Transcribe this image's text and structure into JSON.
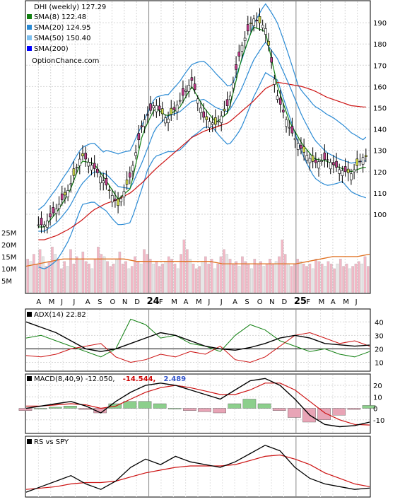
{
  "chart_data": [
    {
      "type": "candlestick",
      "panel": "price",
      "title": "DHI (weekly) 127.29",
      "source": "OptionChance.com",
      "legend_position": "top-left",
      "legend": [
        {
          "label": "SMA(8) 122.48",
          "color": "#128012"
        },
        {
          "label": "SMA(20) 124.95",
          "color": "#2a8ad4"
        },
        {
          "label": "SMA(50) 150.40",
          "color": "#7ec0f0"
        },
        {
          "label": "SMA(200)",
          "color": "#0000ff"
        }
      ],
      "y_ticks": [
        100,
        110,
        120,
        130,
        140,
        150,
        160,
        170,
        180,
        190
      ],
      "ylim": [
        95,
        200
      ],
      "x_labels": [
        "A",
        "M",
        "J",
        "J",
        "A",
        "S",
        "O",
        "N",
        "D",
        "24",
        "F",
        "M",
        "A",
        "M",
        "J",
        "J",
        "A",
        "S",
        "O",
        "N",
        "D",
        "25",
        "F",
        "M",
        "A",
        "M",
        "J"
      ],
      "close_path": [
        [
          "2023-04",
          95
        ],
        [
          "2023-05",
          103
        ],
        [
          "2023-06",
          112
        ],
        [
          "2023-07",
          128
        ],
        [
          "2023-08",
          122
        ],
        [
          "2023-09",
          114
        ],
        [
          "2023-10",
          104
        ],
        [
          "2023-11",
          118
        ],
        [
          "2023-12",
          143
        ],
        [
          "2024-01",
          152
        ],
        [
          "2024-02",
          144
        ],
        [
          "2024-03",
          153
        ],
        [
          "2024-04",
          163
        ],
        [
          "2024-05",
          145
        ],
        [
          "2024-06",
          142
        ],
        [
          "2024-07",
          152
        ],
        [
          "2024-08",
          178
        ],
        [
          "2024-09",
          192
        ],
        [
          "2024-10",
          188
        ],
        [
          "2024-11",
          155
        ],
        [
          "2024-12",
          140
        ],
        [
          "2025-01",
          130
        ],
        [
          "2025-02",
          124
        ],
        [
          "2025-03",
          126
        ],
        [
          "2025-04",
          121
        ],
        [
          "2025-05",
          119
        ],
        [
          "2025-06",
          127
        ]
      ],
      "sma8": [
        [
          "2023-04",
          94
        ],
        [
          "2023-05",
          101
        ],
        [
          "2023-06",
          110
        ],
        [
          "2023-07",
          125
        ],
        [
          "2023-08",
          124
        ],
        [
          "2023-09",
          116
        ],
        [
          "2023-10",
          107
        ],
        [
          "2023-11",
          112
        ],
        [
          "2023-12",
          138
        ],
        [
          "2024-01",
          150
        ],
        [
          "2024-02",
          146
        ],
        [
          "2024-03",
          150
        ],
        [
          "2024-04",
          160
        ],
        [
          "2024-05",
          150
        ],
        [
          "2024-06",
          143
        ],
        [
          "2024-07",
          148
        ],
        [
          "2024-08",
          172
        ],
        [
          "2024-09",
          188
        ],
        [
          "2024-10",
          186
        ],
        [
          "2024-11",
          160
        ],
        [
          "2024-12",
          143
        ],
        [
          "2025-01",
          133
        ],
        [
          "2025-02",
          126
        ],
        [
          "2025-03",
          125
        ],
        [
          "2025-04",
          122
        ],
        [
          "2025-05",
          120
        ],
        [
          "2025-06",
          122
        ]
      ],
      "sma20": [
        [
          "2023-04",
          92
        ],
        [
          "2023-05",
          96
        ],
        [
          "2023-06",
          103
        ],
        [
          "2023-07",
          114
        ],
        [
          "2023-08",
          120
        ],
        [
          "2023-09",
          119
        ],
        [
          "2023-10",
          113
        ],
        [
          "2023-11",
          112
        ],
        [
          "2023-12",
          125
        ],
        [
          "2024-01",
          140
        ],
        [
          "2024-02",
          146
        ],
        [
          "2024-03",
          148
        ],
        [
          "2024-04",
          153
        ],
        [
          "2024-05",
          154
        ],
        [
          "2024-06",
          150
        ],
        [
          "2024-07",
          148
        ],
        [
          "2024-08",
          158
        ],
        [
          "2024-09",
          172
        ],
        [
          "2024-10",
          181
        ],
        [
          "2024-11",
          173
        ],
        [
          "2024-12",
          160
        ],
        [
          "2025-01",
          146
        ],
        [
          "2025-02",
          135
        ],
        [
          "2025-03",
          129
        ],
        [
          "2025-04",
          126
        ],
        [
          "2025-05",
          124
        ],
        [
          "2025-06",
          125
        ]
      ],
      "sma50": [
        [
          "2023-04",
          88
        ],
        [
          "2023-05",
          90
        ],
        [
          "2023-06",
          93
        ],
        [
          "2023-07",
          97
        ],
        [
          "2023-08",
          102
        ],
        [
          "2023-09",
          105
        ],
        [
          "2023-10",
          107
        ],
        [
          "2023-11",
          110
        ],
        [
          "2023-12",
          115
        ],
        [
          "2024-01",
          121
        ],
        [
          "2024-02",
          126
        ],
        [
          "2024-03",
          131
        ],
        [
          "2024-04",
          136
        ],
        [
          "2024-05",
          139
        ],
        [
          "2024-06",
          141
        ],
        [
          "2024-07",
          143
        ],
        [
          "2024-08",
          148
        ],
        [
          "2024-09",
          153
        ],
        [
          "2024-10",
          159
        ],
        [
          "2024-11",
          162
        ],
        [
          "2024-12",
          161
        ],
        [
          "2025-01",
          160
        ],
        [
          "2025-02",
          158
        ],
        [
          "2025-03",
          155
        ],
        [
          "2025-04",
          153
        ],
        [
          "2025-05",
          151
        ],
        [
          "2025-06",
          150.4
        ]
      ]
    },
    {
      "type": "bar",
      "panel": "volume",
      "y_ticks": [
        "25M",
        "20M",
        "15M",
        "10M",
        "5M"
      ],
      "y_tick_values": [
        25,
        20,
        15,
        10,
        5
      ],
      "ylim": [
        0,
        27
      ],
      "values": [
        14,
        13,
        16,
        12,
        18,
        15,
        11,
        13,
        19,
        16,
        14,
        10,
        13,
        11,
        18,
        12,
        15,
        14,
        17,
        13,
        12,
        10,
        14,
        19,
        16,
        15,
        13,
        11,
        12,
        14,
        17,
        12,
        13,
        10,
        11,
        15,
        13,
        12,
        18,
        16,
        14,
        12,
        13,
        11,
        12,
        13,
        15,
        14,
        12,
        10,
        16,
        22,
        18,
        14,
        12,
        10,
        11,
        13,
        15,
        12,
        14,
        10,
        12,
        15,
        18,
        16,
        14,
        12,
        13,
        11,
        15,
        13,
        12,
        10,
        14,
        12,
        13,
        11,
        12,
        14,
        12,
        13,
        15,
        22,
        16,
        12,
        11,
        12,
        14,
        13,
        12,
        11,
        12,
        10,
        14,
        13,
        12,
        11,
        13,
        12,
        10,
        12,
        14,
        11,
        12,
        10,
        11,
        12,
        13,
        12,
        15,
        11
      ],
      "average": [
        11,
        12,
        13,
        14,
        14,
        14,
        14,
        14,
        14,
        13,
        13,
        13,
        13,
        13,
        13,
        13,
        12,
        12,
        12,
        12,
        12,
        12,
        12,
        13,
        14,
        15,
        15,
        15,
        16
      ]
    },
    {
      "type": "line",
      "panel": "adx",
      "legend": "ADX(14) 22.82",
      "y_ticks": [
        10,
        20,
        30,
        40
      ],
      "ylim": [
        5,
        48
      ],
      "adx": [
        [
          0,
          40
        ],
        [
          10,
          36
        ],
        [
          20,
          32
        ],
        [
          30,
          26
        ],
        [
          40,
          20
        ],
        [
          50,
          18
        ],
        [
          60,
          20
        ],
        [
          70,
          24
        ],
        [
          80,
          28
        ],
        [
          90,
          32
        ],
        [
          100,
          30
        ],
        [
          110,
          26
        ],
        [
          120,
          22
        ],
        [
          130,
          20
        ],
        [
          140,
          19
        ],
        [
          150,
          21
        ],
        [
          160,
          24
        ],
        [
          170,
          28
        ],
        [
          180,
          30
        ],
        [
          190,
          28
        ],
        [
          200,
          24
        ],
        [
          210,
          23
        ],
        [
          220,
          22
        ],
        [
          230,
          22.8
        ]
      ],
      "plus_di": [
        [
          0,
          28
        ],
        [
          10,
          30
        ],
        [
          20,
          26
        ],
        [
          30,
          22
        ],
        [
          40,
          18
        ],
        [
          50,
          14
        ],
        [
          60,
          20
        ],
        [
          70,
          42
        ],
        [
          80,
          38
        ],
        [
          90,
          28
        ],
        [
          100,
          30
        ],
        [
          110,
          24
        ],
        [
          120,
          22
        ],
        [
          130,
          18
        ],
        [
          140,
          30
        ],
        [
          150,
          38
        ],
        [
          160,
          34
        ],
        [
          170,
          26
        ],
        [
          180,
          22
        ],
        [
          190,
          18
        ],
        [
          200,
          20
        ],
        [
          210,
          16
        ],
        [
          220,
          14
        ],
        [
          230,
          18
        ]
      ],
      "minus_di": [
        [
          0,
          15
        ],
        [
          10,
          14
        ],
        [
          20,
          16
        ],
        [
          30,
          20
        ],
        [
          40,
          22
        ],
        [
          50,
          24
        ],
        [
          60,
          14
        ],
        [
          70,
          10
        ],
        [
          80,
          12
        ],
        [
          90,
          16
        ],
        [
          100,
          14
        ],
        [
          110,
          18
        ],
        [
          120,
          16
        ],
        [
          130,
          22
        ],
        [
          140,
          12
        ],
        [
          150,
          10
        ],
        [
          160,
          14
        ],
        [
          170,
          22
        ],
        [
          180,
          30
        ],
        [
          190,
          32
        ],
        [
          200,
          28
        ],
        [
          210,
          24
        ],
        [
          220,
          26
        ],
        [
          230,
          22
        ]
      ]
    },
    {
      "type": "line",
      "panel": "macd",
      "legend_name": "MACD(8,40,9)",
      "legend_values": [
        "-12.050,",
        "-14.544,",
        "2.489"
      ],
      "legend_colors": [
        "#000000",
        "#cc0000",
        "#3355cc"
      ],
      "y_ticks": [
        20,
        10,
        0,
        -10
      ],
      "ylim": [
        -20,
        28
      ],
      "macd": [
        [
          0,
          0
        ],
        [
          10,
          2
        ],
        [
          20,
          4
        ],
        [
          30,
          6
        ],
        [
          40,
          2
        ],
        [
          50,
          -4
        ],
        [
          60,
          6
        ],
        [
          70,
          14
        ],
        [
          80,
          20
        ],
        [
          90,
          22
        ],
        [
          100,
          20
        ],
        [
          110,
          16
        ],
        [
          120,
          12
        ],
        [
          130,
          8
        ],
        [
          140,
          16
        ],
        [
          150,
          24
        ],
        [
          160,
          26
        ],
        [
          170,
          20
        ],
        [
          180,
          8
        ],
        [
          190,
          -6
        ],
        [
          200,
          -14
        ],
        [
          210,
          -16
        ],
        [
          220,
          -15
        ],
        [
          230,
          -12
        ]
      ],
      "signal": [
        [
          0,
          2
        ],
        [
          10,
          2
        ],
        [
          20,
          3
        ],
        [
          30,
          4
        ],
        [
          40,
          3
        ],
        [
          50,
          0
        ],
        [
          60,
          2
        ],
        [
          70,
          8
        ],
        [
          80,
          14
        ],
        [
          90,
          18
        ],
        [
          100,
          20
        ],
        [
          110,
          18
        ],
        [
          120,
          15
        ],
        [
          130,
          12
        ],
        [
          140,
          12
        ],
        [
          150,
          16
        ],
        [
          160,
          22
        ],
        [
          170,
          22
        ],
        [
          180,
          16
        ],
        [
          190,
          6
        ],
        [
          200,
          -4
        ],
        [
          210,
          -10
        ],
        [
          220,
          -14
        ],
        [
          230,
          -14.5
        ]
      ],
      "histogram": [
        [
          0,
          -2
        ],
        [
          10,
          0
        ],
        [
          20,
          1
        ],
        [
          30,
          2
        ],
        [
          40,
          -1
        ],
        [
          50,
          -4
        ],
        [
          60,
          4
        ],
        [
          70,
          6
        ],
        [
          80,
          6
        ],
        [
          90,
          4
        ],
        [
          100,
          0
        ],
        [
          110,
          -2
        ],
        [
          120,
          -3
        ],
        [
          130,
          -4
        ],
        [
          140,
          4
        ],
        [
          150,
          8
        ],
        [
          160,
          4
        ],
        [
          170,
          -2
        ],
        [
          180,
          -8
        ],
        [
          190,
          -12
        ],
        [
          200,
          -10
        ],
        [
          210,
          -6
        ],
        [
          220,
          -1
        ],
        [
          230,
          2.5
        ]
      ]
    },
    {
      "type": "line",
      "panel": "relative-strength",
      "legend": "RS vs SPY",
      "rs": [
        [
          0,
          2
        ],
        [
          10,
          6
        ],
        [
          20,
          10
        ],
        [
          30,
          14
        ],
        [
          40,
          8
        ],
        [
          50,
          4
        ],
        [
          60,
          10
        ],
        [
          70,
          20
        ],
        [
          80,
          26
        ],
        [
          90,
          22
        ],
        [
          100,
          28
        ],
        [
          110,
          24
        ],
        [
          120,
          22
        ],
        [
          130,
          20
        ],
        [
          140,
          24
        ],
        [
          150,
          30
        ],
        [
          160,
          36
        ],
        [
          170,
          32
        ],
        [
          180,
          20
        ],
        [
          190,
          12
        ],
        [
          200,
          8
        ],
        [
          210,
          6
        ],
        [
          220,
          4
        ],
        [
          230,
          5
        ]
      ],
      "rs_average": [
        [
          0,
          4
        ],
        [
          10,
          5
        ],
        [
          20,
          6
        ],
        [
          30,
          8
        ],
        [
          40,
          9
        ],
        [
          50,
          9
        ],
        [
          60,
          10
        ],
        [
          70,
          13
        ],
        [
          80,
          16
        ],
        [
          90,
          18
        ],
        [
          100,
          20
        ],
        [
          110,
          21
        ],
        [
          120,
          21
        ],
        [
          130,
          21
        ],
        [
          140,
          22
        ],
        [
          150,
          25
        ],
        [
          160,
          28
        ],
        [
          170,
          29
        ],
        [
          180,
          26
        ],
        [
          190,
          22
        ],
        [
          200,
          16
        ],
        [
          210,
          12
        ],
        [
          220,
          8
        ],
        [
          230,
          6
        ]
      ]
    }
  ]
}
